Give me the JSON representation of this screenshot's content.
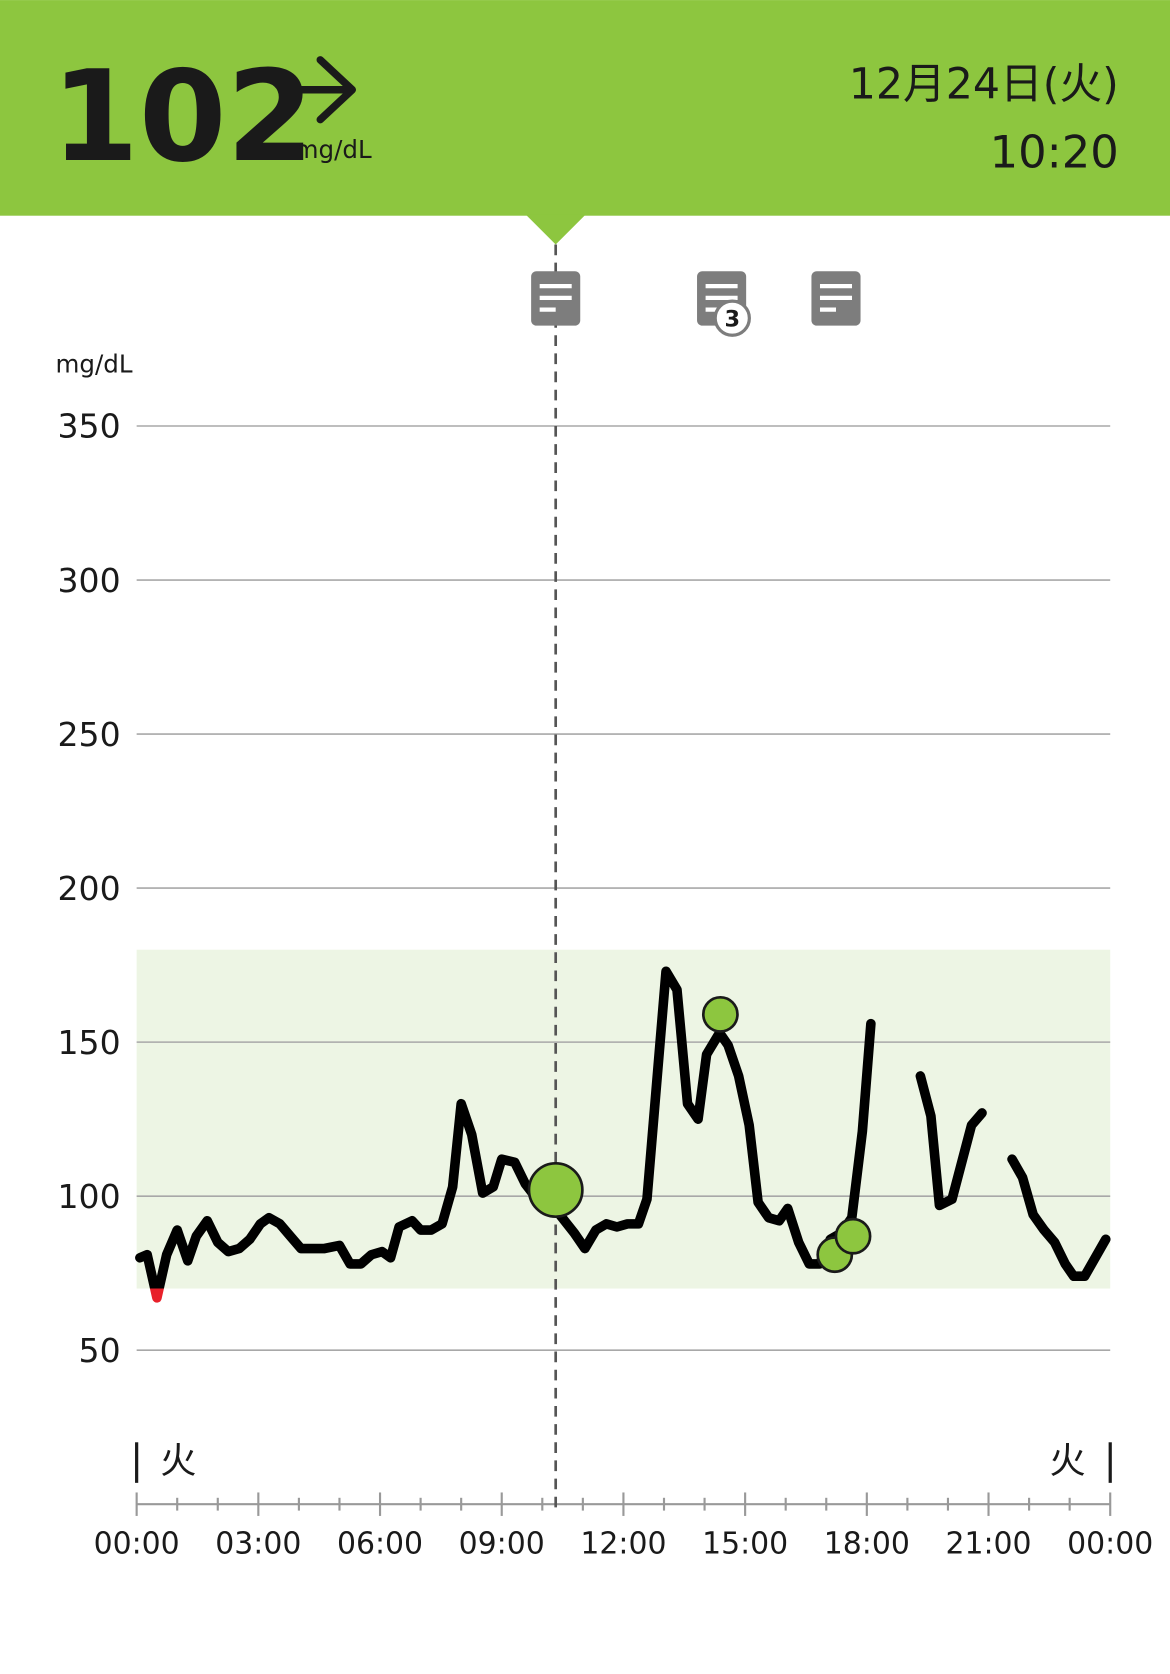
{
  "header": {
    "glucose": 102,
    "unit": "mg/dL",
    "date": "12月24日(火)",
    "time": "10:20"
  },
  "chart_data": {
    "type": "line",
    "y_label": "mg/dL",
    "ylim": [
      0,
      350
    ],
    "yticks": [
      50,
      100,
      150,
      200,
      250,
      300,
      350
    ],
    "xlim": [
      0,
      24
    ],
    "xticks": [
      {
        "value": 0,
        "label": "00:00"
      },
      {
        "value": 3,
        "label": "03:00"
      },
      {
        "value": 6,
        "label": "06:00"
      },
      {
        "value": 9,
        "label": "09:00"
      },
      {
        "value": 12,
        "label": "12:00"
      },
      {
        "value": 15,
        "label": "15:00"
      },
      {
        "value": 18,
        "label": "18:00"
      },
      {
        "value": 21,
        "label": "21:00"
      },
      {
        "value": 24,
        "label": "00:00"
      }
    ],
    "minor_xticks": [
      1,
      2,
      4,
      5,
      7,
      8,
      10,
      11,
      13,
      14,
      16,
      17,
      19,
      20,
      22,
      23
    ],
    "grid": true,
    "target_range": [
      70,
      180
    ],
    "target_color": "#edf5e4",
    "day_labels": [
      "火",
      "火"
    ],
    "cursor_x": 10.33,
    "series": [
      {
        "color": "#000000",
        "low_color": "#e8202a",
        "x": [
          0.08,
          0.26,
          0.5,
          0.74,
          1.0,
          1.26,
          1.47,
          1.74,
          2.0,
          2.26,
          2.53,
          2.79,
          3.05,
          3.26,
          3.53,
          3.79,
          4.05,
          4.32,
          4.63,
          5.0,
          5.26,
          5.53,
          5.79,
          6.05,
          6.26,
          6.47,
          6.79,
          7.0,
          7.26,
          7.53,
          7.79,
          8.0,
          8.26,
          8.53,
          8.79,
          9.0,
          9.32,
          9.58,
          10.05,
          10.37,
          10.79,
          11.05,
          11.32,
          11.58,
          11.84,
          12.1,
          12.37,
          12.58,
          13.05,
          13.32,
          13.58,
          13.84,
          14.05,
          14.37,
          14.58,
          14.84,
          15.1,
          15.32,
          15.58,
          15.84,
          16.05,
          16.32,
          16.58,
          16.84,
          17.1,
          17.37,
          17.63,
          17.89,
          18.1,
          18.7,
          19.32,
          19.58,
          19.79,
          20.1,
          20.58,
          20.84,
          21.2,
          21.58,
          21.84,
          22.1,
          22.37,
          22.63,
          22.89,
          23.1,
          23.37,
          23.89
        ],
        "values": [
          80,
          81,
          67,
          81,
          89,
          79,
          87,
          92,
          85,
          82,
          83,
          86,
          91,
          93,
          91,
          87,
          83,
          83,
          83,
          84,
          78,
          78,
          81,
          82,
          80,
          90,
          92,
          89,
          89,
          91,
          103,
          130,
          120,
          101,
          103,
          112,
          111,
          104,
          96,
          95,
          88,
          83,
          89,
          91,
          90,
          91,
          91,
          99,
          173,
          167,
          130,
          125,
          146,
          153,
          149,
          139,
          123,
          98,
          93,
          92,
          96,
          85,
          78,
          78,
          86,
          88,
          93,
          121,
          156,
          null,
          139,
          126,
          97,
          99,
          123,
          127,
          null,
          112,
          106,
          94,
          89,
          85,
          78,
          74,
          74,
          86
        ]
      }
    ],
    "readings": {
      "color": "#8dc63f",
      "x": [
        10.33,
        14.39,
        17.21,
        17.66
      ],
      "values": [
        102,
        159,
        81,
        87
      ]
    },
    "notes": {
      "x": [
        10.33,
        14.42,
        17.24
      ],
      "counts": [
        null,
        3,
        null
      ]
    }
  }
}
